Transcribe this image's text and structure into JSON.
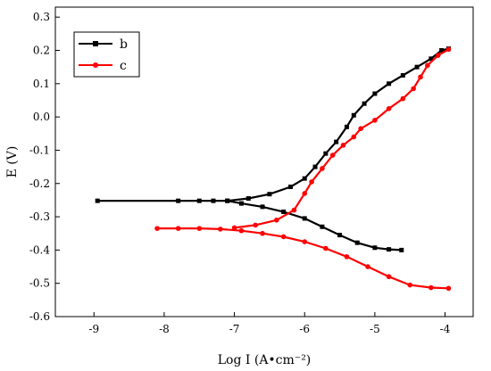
{
  "chart_data": {
    "type": "line",
    "xlabel": "Log I (A•cm⁻²)",
    "ylabel": "E (V)",
    "xlim": [
      -9.55,
      -3.6
    ],
    "ylim": [
      -0.6,
      0.33
    ],
    "xticks": [
      -9,
      -8,
      -7,
      -6,
      -5,
      -4
    ],
    "xtick_labels": [
      "-9",
      "-8",
      "-7",
      "-6",
      "-5",
      "-4"
    ],
    "yticks": [
      -0.6,
      -0.5,
      -0.4,
      -0.3,
      -0.2,
      -0.1,
      0.0,
      0.1,
      0.2,
      0.3
    ],
    "ytick_labels": [
      "-0.6",
      "-0.5",
      "-0.4",
      "-0.3",
      "-0.2",
      "-0.1",
      "0.0",
      "0.1",
      "0.2",
      "0.3"
    ],
    "grid": false,
    "legend_position": "top-left",
    "series": [
      {
        "name": "b",
        "color": "#000000",
        "marker": "square",
        "cathodic": [
          [
            -8.95,
            -0.252
          ],
          [
            -7.8,
            -0.252
          ],
          [
            -7.5,
            -0.252
          ],
          [
            -7.3,
            -0.252
          ],
          [
            -7.1,
            -0.252
          ],
          [
            -6.9,
            -0.26
          ],
          [
            -6.6,
            -0.27
          ],
          [
            -6.3,
            -0.285
          ],
          [
            -6.0,
            -0.305
          ],
          [
            -5.75,
            -0.33
          ],
          [
            -5.5,
            -0.355
          ],
          [
            -5.25,
            -0.378
          ],
          [
            -5.0,
            -0.393
          ],
          [
            -4.8,
            -0.398
          ],
          [
            -4.62,
            -0.4
          ]
        ],
        "anodic": [
          [
            -7.1,
            -0.252
          ],
          [
            -6.8,
            -0.245
          ],
          [
            -6.5,
            -0.232
          ],
          [
            -6.2,
            -0.21
          ],
          [
            -6.0,
            -0.185
          ],
          [
            -5.85,
            -0.15
          ],
          [
            -5.7,
            -0.11
          ],
          [
            -5.55,
            -0.075
          ],
          [
            -5.4,
            -0.03
          ],
          [
            -5.3,
            0.005
          ],
          [
            -5.15,
            0.04
          ],
          [
            -5.0,
            0.07
          ],
          [
            -4.8,
            0.1
          ],
          [
            -4.6,
            0.125
          ],
          [
            -4.4,
            0.15
          ],
          [
            -4.2,
            0.175
          ],
          [
            -4.05,
            0.2
          ],
          [
            -3.95,
            0.205
          ]
        ]
      },
      {
        "name": "c",
        "color": "#ff0000",
        "marker": "circle",
        "cathodic": [
          [
            -8.1,
            -0.335
          ],
          [
            -7.8,
            -0.335
          ],
          [
            -7.5,
            -0.335
          ],
          [
            -7.2,
            -0.337
          ],
          [
            -6.9,
            -0.342
          ],
          [
            -6.6,
            -0.35
          ],
          [
            -6.3,
            -0.36
          ],
          [
            -6.0,
            -0.375
          ],
          [
            -5.7,
            -0.395
          ],
          [
            -5.4,
            -0.42
          ],
          [
            -5.1,
            -0.45
          ],
          [
            -4.8,
            -0.48
          ],
          [
            -4.5,
            -0.505
          ],
          [
            -4.2,
            -0.513
          ],
          [
            -3.95,
            -0.515
          ]
        ],
        "anodic": [
          [
            -7.0,
            -0.333
          ],
          [
            -6.7,
            -0.325
          ],
          [
            -6.4,
            -0.31
          ],
          [
            -6.15,
            -0.28
          ],
          [
            -6.0,
            -0.23
          ],
          [
            -5.9,
            -0.195
          ],
          [
            -5.75,
            -0.155
          ],
          [
            -5.6,
            -0.115
          ],
          [
            -5.45,
            -0.085
          ],
          [
            -5.3,
            -0.06
          ],
          [
            -5.2,
            -0.035
          ],
          [
            -5.0,
            -0.01
          ],
          [
            -4.8,
            0.025
          ],
          [
            -4.6,
            0.055
          ],
          [
            -4.45,
            0.085
          ],
          [
            -4.35,
            0.12
          ],
          [
            -4.25,
            0.155
          ],
          [
            -4.1,
            0.185
          ],
          [
            -3.95,
            0.203
          ]
        ]
      }
    ]
  }
}
